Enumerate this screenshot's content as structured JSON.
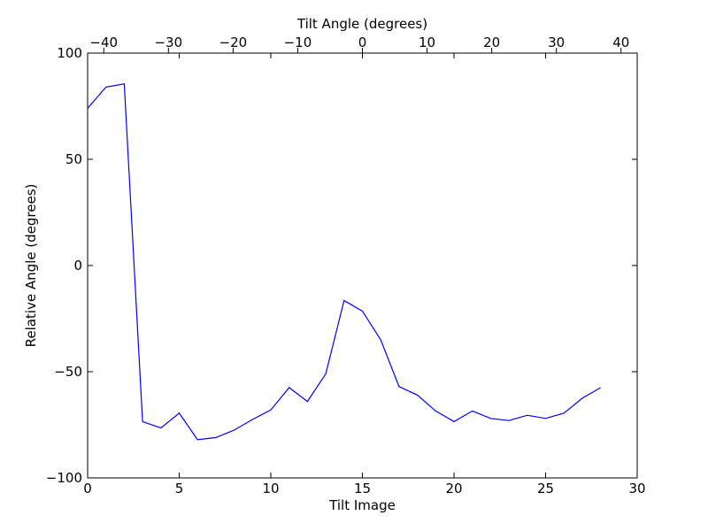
{
  "chart_data": {
    "type": "line",
    "xlabel": "Tilt Image",
    "x2label": "Tilt Angle (degrees)",
    "ylabel": "Relative Angle (degrees)",
    "xlim": [
      0,
      30
    ],
    "x2lim": [
      -42.5,
      42.5
    ],
    "ylim": [
      -100,
      100
    ],
    "xticks": [
      "0",
      "5",
      "10",
      "15",
      "20",
      "25",
      "30"
    ],
    "x2ticks": [
      "−40",
      "−30",
      "−20",
      "−10",
      "0",
      "10",
      "20",
      "30",
      "40"
    ],
    "yticks": [
      "−100",
      "−50",
      "0",
      "50",
      "100"
    ],
    "grid": false,
    "series": [
      {
        "color": "#0000ff",
        "x": [
          0,
          1,
          2,
          3,
          4,
          5,
          6,
          7,
          8,
          9,
          10,
          11,
          12,
          13,
          14,
          15,
          16,
          17,
          18,
          19,
          20,
          21,
          22,
          23,
          24,
          25,
          26,
          27,
          28
        ],
        "y": [
          74,
          84,
          85.5,
          -73.5,
          -76.5,
          -69.5,
          -82,
          -81,
          -77.5,
          -72.5,
          -68,
          -57.5,
          -64,
          -51,
          -16.5,
          -21.5,
          -35,
          -57,
          -61,
          -68.5,
          -73.5,
          -68.5,
          -72,
          -73,
          -70.5,
          -72,
          -69.5,
          -62.5,
          -57.5
        ]
      }
    ]
  }
}
